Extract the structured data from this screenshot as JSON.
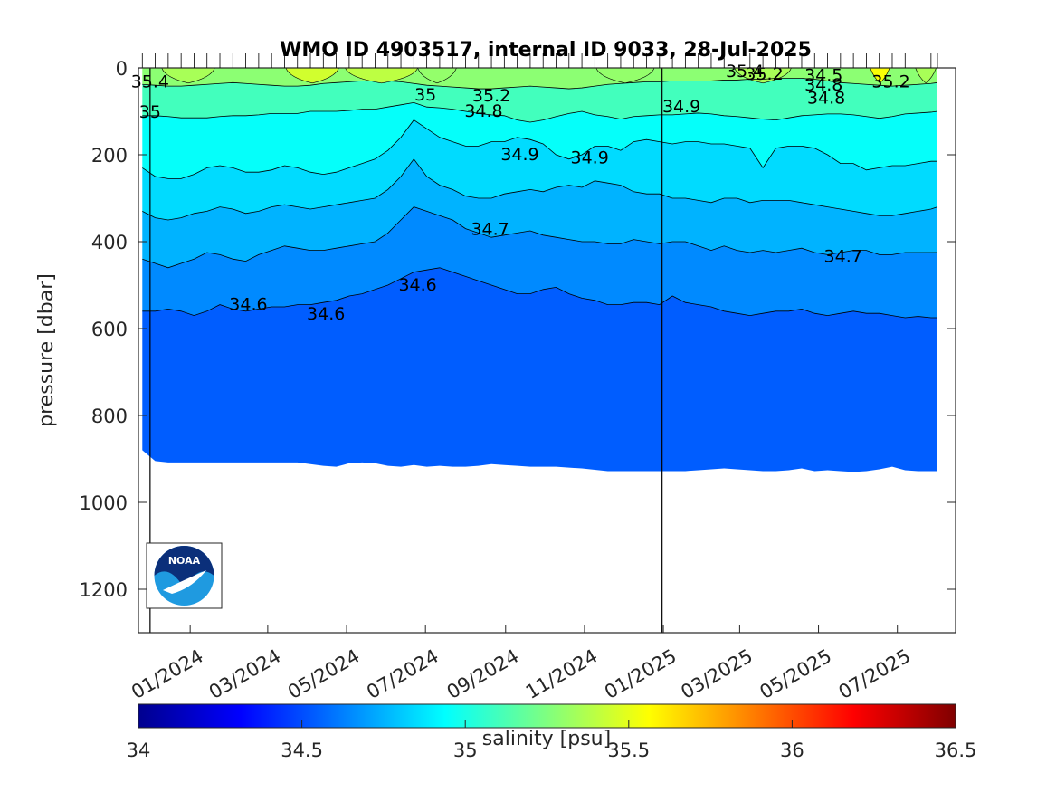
{
  "chart_data": {
    "type": "heatmap",
    "title": "WMO ID 4903517, internal ID 9033, 28-Jul-2025",
    "ylabel": "pressure [dbar]",
    "xlabel": "",
    "y_reversed": true,
    "ylim": [
      0,
      1300
    ],
    "yticks": [
      "0",
      "200",
      "400",
      "600",
      "800",
      "1000",
      "1200"
    ],
    "ytick_values": [
      0,
      200,
      400,
      600,
      800,
      1000,
      1200
    ],
    "xlim": [
      "2023-11-22",
      "2025-08-15"
    ],
    "xticks": [
      "01/2024",
      "03/2024",
      "05/2024",
      "07/2024",
      "09/2024",
      "11/2024",
      "01/2025",
      "03/2025",
      "05/2025",
      "07/2025"
    ],
    "xtick_dates": [
      "2024-01-01",
      "2024-03-01",
      "2024-05-01",
      "2024-07-01",
      "2024-09-01",
      "2024-11-01",
      "2025-01-01",
      "2025-03-01",
      "2025-05-01",
      "2025-07-01"
    ],
    "data_start": "2023-11-25",
    "data_end": "2025-08-01",
    "year_markers": [
      "2023-12-01",
      "2024-12-31"
    ],
    "profile_dates": [
      "2023-11-25",
      "2023-12-05",
      "2023-12-15",
      "2023-12-25",
      "2024-01-04",
      "2024-01-14",
      "2024-01-24",
      "2024-02-03",
      "2024-02-13",
      "2024-02-23",
      "2024-03-04",
      "2024-03-14",
      "2024-03-24",
      "2024-04-03",
      "2024-04-13",
      "2024-04-23",
      "2024-05-03",
      "2024-05-13",
      "2024-05-23",
      "2024-06-02",
      "2024-06-12",
      "2024-06-22",
      "2024-07-02",
      "2024-07-12",
      "2024-07-22",
      "2024-08-01",
      "2024-08-11",
      "2024-08-21",
      "2024-08-31",
      "2024-09-10",
      "2024-09-20",
      "2024-09-30",
      "2024-10-10",
      "2024-10-20",
      "2024-10-30",
      "2024-11-09",
      "2024-11-19",
      "2024-11-29",
      "2024-12-09",
      "2024-12-19",
      "2024-12-29",
      "2025-01-08",
      "2025-01-18",
      "2025-01-28",
      "2025-02-07",
      "2025-02-17",
      "2025-02-27",
      "2025-03-09",
      "2025-03-19",
      "2025-03-29",
      "2025-04-08",
      "2025-04-18",
      "2025-04-28",
      "2025-05-08",
      "2025-05-18",
      "2025-05-28",
      "2025-06-07",
      "2025-06-17",
      "2025-06-27",
      "2025-07-07",
      "2025-07-17",
      "2025-07-27",
      "2025-08-01"
    ],
    "bottom_pressure": [
      880,
      905,
      908,
      908,
      908,
      908,
      908,
      908,
      908,
      908,
      908,
      908,
      908,
      912,
      916,
      918,
      910,
      908,
      910,
      916,
      918,
      914,
      918,
      916,
      918,
      918,
      916,
      912,
      914,
      916,
      918,
      918,
      918,
      920,
      922,
      925,
      928,
      928,
      928,
      928,
      928,
      928,
      928,
      926,
      924,
      922,
      924,
      926,
      928,
      928,
      926,
      922,
      928,
      926,
      928,
      930,
      928,
      924,
      918,
      926,
      928,
      928,
      928
    ],
    "isolines": [
      {
        "level": 34.6,
        "p": [
          560,
          560,
          555,
          560,
          570,
          560,
          545,
          555,
          560,
          555,
          550,
          550,
          545,
          545,
          540,
          535,
          525,
          520,
          510,
          500,
          485,
          470,
          465,
          460,
          470,
          480,
          490,
          500,
          510,
          520,
          520,
          510,
          505,
          520,
          530,
          535,
          545,
          545,
          540,
          540,
          545,
          525,
          540,
          545,
          550,
          560,
          565,
          570,
          565,
          560,
          560,
          555,
          565,
          570,
          565,
          560,
          565,
          565,
          570,
          575,
          572,
          575,
          575
        ]
      },
      {
        "level": 34.7,
        "p": [
          440,
          450,
          460,
          450,
          440,
          425,
          430,
          440,
          445,
          430,
          420,
          410,
          415,
          420,
          420,
          415,
          410,
          405,
          400,
          380,
          350,
          320,
          330,
          340,
          350,
          370,
          380,
          390,
          385,
          380,
          375,
          385,
          390,
          395,
          400,
          400,
          405,
          405,
          395,
          400,
          405,
          400,
          400,
          410,
          420,
          410,
          420,
          425,
          420,
          425,
          420,
          415,
          425,
          430,
          425,
          420,
          420,
          430,
          430,
          425,
          425,
          425,
          425
        ]
      },
      {
        "level": 34.8,
        "p": [
          330,
          345,
          350,
          345,
          335,
          330,
          320,
          325,
          335,
          330,
          320,
          315,
          320,
          325,
          320,
          315,
          310,
          305,
          300,
          280,
          250,
          210,
          250,
          270,
          280,
          295,
          300,
          300,
          290,
          285,
          280,
          285,
          275,
          270,
          275,
          260,
          265,
          270,
          285,
          290,
          290,
          300,
          300,
          305,
          310,
          300,
          300,
          310,
          305,
          305,
          305,
          310,
          315,
          320,
          325,
          330,
          335,
          340,
          340,
          335,
          330,
          325,
          320
        ]
      },
      {
        "level": 34.9,
        "p": [
          230,
          250,
          255,
          255,
          245,
          230,
          225,
          230,
          240,
          240,
          235,
          225,
          230,
          240,
          245,
          240,
          230,
          220,
          210,
          190,
          160,
          120,
          140,
          160,
          170,
          180,
          180,
          170,
          170,
          160,
          165,
          175,
          200,
          210,
          200,
          180,
          180,
          190,
          170,
          165,
          170,
          175,
          170,
          170,
          175,
          175,
          180,
          185,
          230,
          185,
          180,
          180,
          185,
          200,
          220,
          220,
          235,
          230,
          225,
          225,
          220,
          215,
          215
        ]
      },
      {
        "level": 35.0,
        "p": [
          110,
          110,
          112,
          115,
          115,
          115,
          112,
          110,
          110,
          108,
          105,
          105,
          105,
          100,
          100,
          100,
          98,
          95,
          95,
          90,
          85,
          80,
          90,
          92,
          95,
          100,
          105,
          108,
          110,
          120,
          125,
          120,
          112,
          105,
          100,
          108,
          112,
          118,
          112,
          110,
          108,
          108,
          106,
          104,
          106,
          110,
          112,
          115,
          118,
          120,
          115,
          110,
          108,
          106,
          106,
          108,
          112,
          116,
          112,
          106,
          104,
          102,
          100
        ]
      },
      {
        "level": 35.2,
        "p": [
          38,
          40,
          42,
          42,
          40,
          38,
          36,
          34,
          36,
          38,
          40,
          42,
          42,
          40,
          36,
          34,
          32,
          30,
          30,
          30,
          32,
          36,
          40,
          42,
          44,
          46,
          48,
          48,
          46,
          44,
          42,
          44,
          46,
          48,
          46,
          42,
          38,
          36,
          34,
          32,
          32,
          30,
          30,
          30,
          30,
          28,
          28,
          26,
          26,
          24,
          24,
          24,
          26,
          30,
          34,
          36,
          38,
          40,
          42,
          40,
          38,
          36,
          34
        ]
      }
    ],
    "contour_labels": [
      {
        "text": "35.4",
        "date": "2023-12-01",
        "p": 30
      },
      {
        "text": "35",
        "date": "2023-12-01",
        "p": 100
      },
      {
        "text": "35",
        "date": "2024-07-01",
        "p": 60
      },
      {
        "text": "35.2",
        "date": "2024-08-21",
        "p": 62
      },
      {
        "text": "34.8",
        "date": "2024-08-15",
        "p": 98
      },
      {
        "text": "34.9",
        "date": "2024-09-12",
        "p": 198
      },
      {
        "text": "34.9",
        "date": "2024-11-05",
        "p": 205
      },
      {
        "text": "34.9",
        "date": "2025-01-15",
        "p": 87
      },
      {
        "text": "35.4",
        "date": "2025-03-05",
        "p": 6
      },
      {
        "text": "35.2",
        "date": "2025-03-20",
        "p": 12
      },
      {
        "text": "34.5",
        "date": "2025-05-05",
        "p": 16
      },
      {
        "text": "34.8",
        "date": "2025-05-05",
        "p": 38
      },
      {
        "text": "34.8",
        "date": "2025-05-07",
        "p": 68
      },
      {
        "text": "35.2",
        "date": "2025-06-26",
        "p": 30
      },
      {
        "text": "34.7",
        "date": "2024-08-20",
        "p": 370
      },
      {
        "text": "34.7",
        "date": "2025-05-20",
        "p": 432
      },
      {
        "text": "34.6",
        "date": "2024-06-25",
        "p": 498
      },
      {
        "text": "34.6",
        "date": "2024-02-15",
        "p": 543
      },
      {
        "text": "34.6",
        "date": "2024-04-15",
        "p": 565
      }
    ],
    "surface_patches": [
      {
        "from": "2023-12-10",
        "to": "2024-01-20",
        "level": 35.35
      },
      {
        "from": "2024-03-15",
        "to": "2024-04-25",
        "level": 35.45
      },
      {
        "from": "2024-04-30",
        "to": "2024-06-25",
        "level": 35.4
      },
      {
        "from": "2024-06-25",
        "to": "2024-07-25",
        "level": 35.3
      },
      {
        "from": "2024-11-10",
        "to": "2024-12-25",
        "level": 35.3
      },
      {
        "from": "2025-02-25",
        "to": "2025-04-10",
        "level": 35.35
      },
      {
        "from": "2025-06-10",
        "to": "2025-06-25",
        "level": 35.55
      },
      {
        "from": "2025-07-15",
        "to": "2025-07-31",
        "level": 35.35
      }
    ],
    "colorbar": {
      "label": "salinity [psu]",
      "min": 34,
      "max": 36.5,
      "ticks": [
        "34",
        "34.5",
        "35",
        "35.5",
        "36",
        "36.5"
      ],
      "tick_values": [
        34,
        34.5,
        35,
        35.5,
        36,
        36.5
      ],
      "colormap": "jet"
    },
    "logo_text": "NOAA"
  }
}
